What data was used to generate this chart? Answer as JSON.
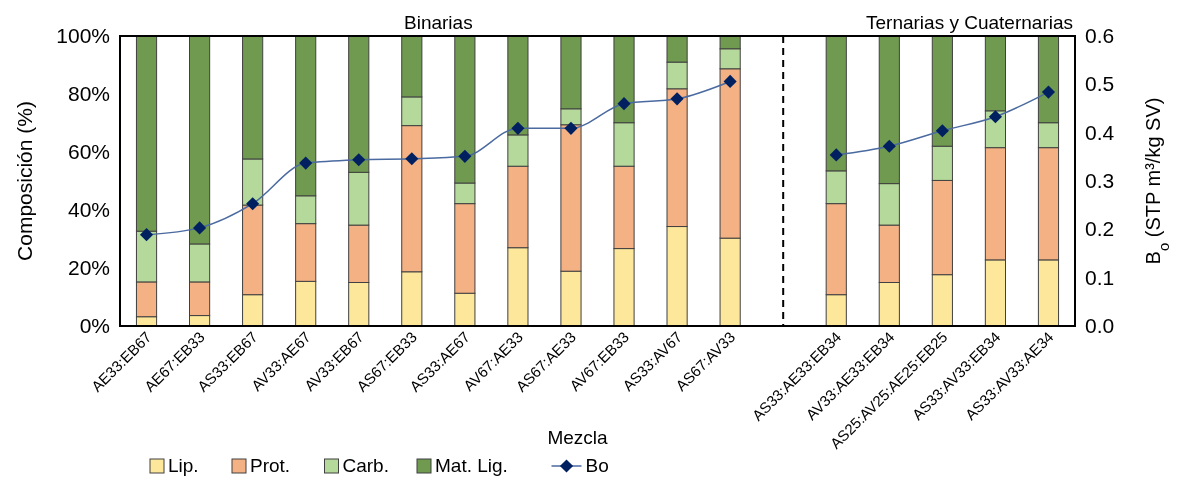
{
  "chart_data": {
    "type": "bar",
    "stacked": true,
    "xlabel": "Mezcla",
    "ylabel": "Composición (%)",
    "y2label": "B$_{o}$ (STP m³/kg SV)",
    "annotations": [
      "Binarias",
      "Ternarias y Cuaternarias"
    ],
    "categories": [
      "AE33:EB67",
      "AE67:EB33",
      "AS33:EB67",
      "AV33:AE67",
      "AV33:EB67",
      "AS67:EB33",
      "AS33:AE67",
      "AV67:AE33",
      "AS67:AE33",
      "AV67:EB33",
      "AS33:AV67",
      "AS67:AV33",
      null,
      "AS33:AE33:EB34",
      "AV33:AE33:EB34",
      "AS25:AV25:AE25:EB25",
      "AS33:AV33:EB34",
      "AS33:AV33:AE34"
    ],
    "series": [
      {
        "name": "Lip.",
        "color": "#fde79a",
        "values": [
          3.2,
          3.6,
          10.8,
          15.4,
          15.0,
          18.7,
          11.3,
          27.0,
          18.9,
          26.7,
          34.3,
          30.3,
          null,
          10.8,
          15.0,
          17.7,
          22.8,
          22.8
        ]
      },
      {
        "name": "Prot.",
        "color": "#f4b183",
        "values": [
          12.0,
          11.6,
          30.9,
          19.9,
          19.8,
          50.4,
          30.9,
          28.1,
          50.5,
          28.4,
          47.5,
          58.4,
          null,
          31.4,
          19.8,
          32.5,
          38.7,
          38.7
        ]
      },
      {
        "name": "Carb.",
        "color": "#b5d99a",
        "values": [
          17.5,
          13.1,
          15.9,
          9.6,
          18.2,
          9.9,
          7.1,
          10.8,
          5.5,
          15.0,
          9.2,
          6.9,
          null,
          11.3,
          14.3,
          11.8,
          12.7,
          8.6
        ]
      },
      {
        "name": "Mat. Lig.",
        "color": "#6f9a4f",
        "values": [
          67.3,
          71.7,
          42.4,
          55.1,
          47.0,
          21.0,
          50.7,
          34.1,
          25.1,
          29.9,
          9.0,
          4.4,
          null,
          46.5,
          50.9,
          38.0,
          25.8,
          29.9
        ]
      },
      {
        "name": "Bo",
        "type": "line",
        "axis": "y2",
        "color": "#002060",
        "marker": "diamond",
        "values": [
          0.189,
          0.203,
          0.253,
          0.337,
          0.344,
          0.346,
          0.351,
          0.409,
          0.409,
          0.46,
          0.47,
          0.506,
          null,
          0.354,
          0.372,
          0.404,
          0.433,
          0.484
        ]
      }
    ],
    "ylim": [
      0,
      100
    ],
    "yticks": [
      {
        "value": 0,
        "label": "0%"
      },
      {
        "value": 20,
        "label": "20%"
      },
      {
        "value": 40,
        "label": "40%"
      },
      {
        "value": 60,
        "label": "60%"
      },
      {
        "value": 80,
        "label": "80%"
      },
      {
        "value": 100,
        "label": "100%"
      }
    ],
    "y2lim": [
      0,
      0.6
    ],
    "y2ticks": [
      {
        "value": 0,
        "label": "0.0"
      },
      {
        "value": 0.1,
        "label": "0.1"
      },
      {
        "value": 0.2,
        "label": "0.2"
      },
      {
        "value": 0.3,
        "label": "0.3"
      },
      {
        "value": 0.4,
        "label": "0.4"
      },
      {
        "value": 0.5,
        "label": "0.5"
      },
      {
        "value": 0.6,
        "label": "0.6"
      }
    ],
    "legend": "bottom"
  }
}
